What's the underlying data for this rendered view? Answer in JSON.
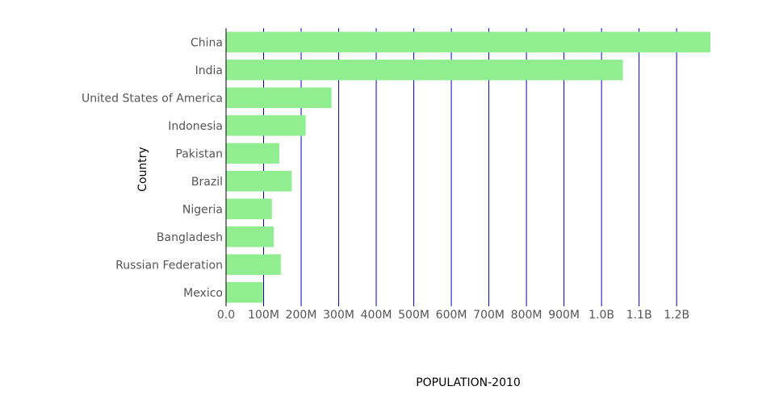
{
  "chart_data": {
    "type": "bar",
    "orientation": "horizontal",
    "categories": [
      "China",
      "India",
      "United States of America",
      "Indonesia",
      "Pakistan",
      "Brazil",
      "Nigeria",
      "Bangladesh",
      "Russian Federation",
      "Mexico"
    ],
    "values": [
      1290000000,
      1057000000,
      281000000,
      212000000,
      142000000,
      175000000,
      122000000,
      127000000,
      146000000,
      98000000
    ],
    "xlabel": "POPULATION-2010",
    "ylabel": "Country",
    "xlim": [
      0,
      1290000000
    ],
    "x_ticks": [
      {
        "value": 0,
        "label": "0.0"
      },
      {
        "value": 100000000,
        "label": "100M"
      },
      {
        "value": 200000000,
        "label": "200M"
      },
      {
        "value": 300000000,
        "label": "300M"
      },
      {
        "value": 400000000,
        "label": "400M"
      },
      {
        "value": 500000000,
        "label": "500M"
      },
      {
        "value": 600000000,
        "label": "600M"
      },
      {
        "value": 700000000,
        "label": "700M"
      },
      {
        "value": 800000000,
        "label": "800M"
      },
      {
        "value": 900000000,
        "label": "900M"
      },
      {
        "value": 1000000000,
        "label": "1.0B"
      },
      {
        "value": 1100000000,
        "label": "1.1B"
      },
      {
        "value": 1200000000,
        "label": "1.2B"
      }
    ],
    "grid": true,
    "legend": "none",
    "colors": {
      "bar": "#90ee90",
      "grid": "#0000cc",
      "axis": "#000000"
    }
  }
}
